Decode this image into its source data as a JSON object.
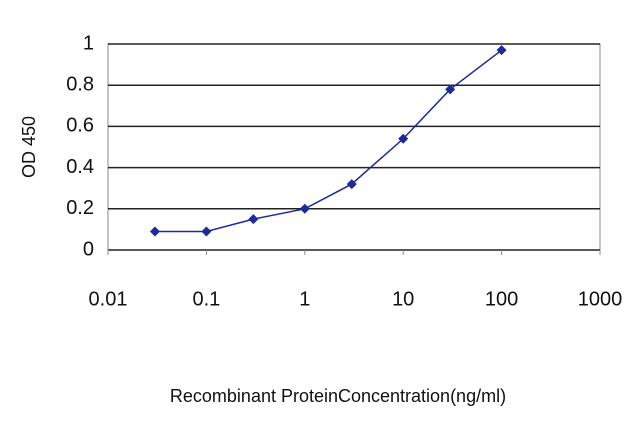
{
  "chart_data": {
    "type": "line",
    "x_label": "Recombinant ProteinConcentration(ng/ml)",
    "y_label": "OD 450",
    "x": [
      0.03,
      0.1,
      0.3,
      1,
      3,
      10,
      30,
      100
    ],
    "series": [
      {
        "color": "#1c2a9a",
        "values": [
          0.09,
          0.09,
          0.15,
          0.2,
          0.32,
          0.54,
          0.78,
          0.97
        ]
      }
    ],
    "xscale": "log",
    "xlim": [
      0.01,
      1000
    ],
    "xticks": [
      0.01,
      0.1,
      1,
      10,
      100,
      1000
    ],
    "ylim": [
      0,
      1
    ],
    "yticks": [
      0,
      0.2,
      0.4,
      0.6,
      0.8,
      1
    ],
    "grid": true
  }
}
